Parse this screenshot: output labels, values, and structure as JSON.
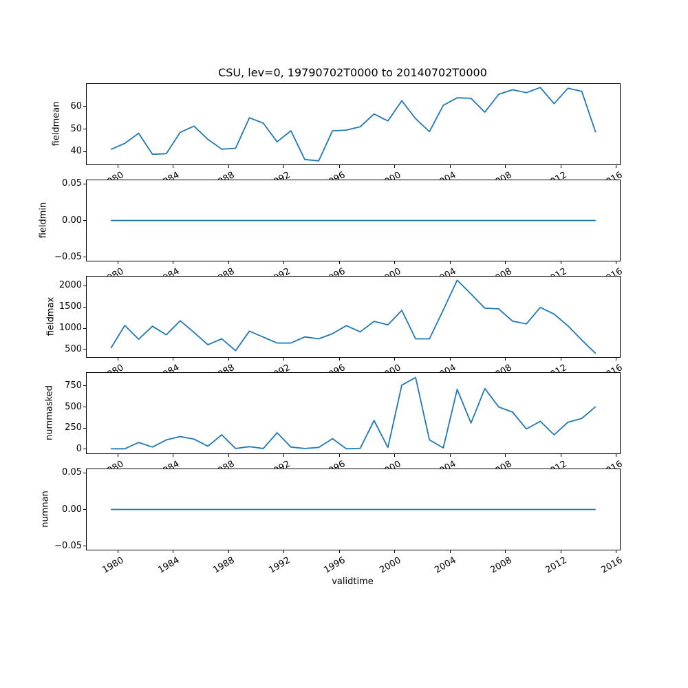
{
  "chart_data": {
    "type": "line",
    "title": "CSU, lev=0, 19790702T0000 to 20140702T0000",
    "xlabel": "validtime",
    "line_color": "#1f77b4",
    "legend": "none",
    "grid": false,
    "x_years": [
      1979,
      1980,
      1981,
      1982,
      1983,
      1984,
      1985,
      1986,
      1987,
      1988,
      1989,
      1990,
      1991,
      1992,
      1993,
      1994,
      1995,
      1996,
      1997,
      1998,
      1999,
      2000,
      2001,
      2002,
      2003,
      2004,
      2005,
      2006,
      2007,
      2008,
      2009,
      2010,
      2011,
      2012,
      2013,
      2014
    ],
    "x_year_fraction": 0.5,
    "xlim": [
      1977.75,
      2016.25
    ],
    "xtick_values": [
      1980,
      1984,
      1988,
      1992,
      1996,
      2000,
      2004,
      2008,
      2012,
      2016
    ],
    "xtick_labels": [
      "1980",
      "1984",
      "1988",
      "1992",
      "1996",
      "2000",
      "2004",
      "2008",
      "2012",
      "2016"
    ],
    "xtick_rotation_deg": 30,
    "subplots": [
      {
        "ylabel": "fieldmean",
        "ylim": [
          34.2,
          70.1
        ],
        "ytick_values": [
          40,
          50,
          60
        ],
        "ytick_labels": [
          "40",
          "50",
          "60"
        ],
        "values": [
          40.9,
          43.6,
          48.1,
          38.7,
          39.0,
          48.5,
          51.3,
          45.4,
          41.0,
          41.4,
          55.0,
          52.6,
          44.3,
          49.2,
          36.4,
          35.8,
          49.2,
          49.5,
          51.0,
          56.7,
          53.6,
          62.6,
          54.6,
          48.8,
          60.6,
          63.9,
          63.7,
          57.5,
          65.5,
          67.5,
          66.2,
          68.5,
          61.3,
          68.2,
          66.8,
          48.5
        ]
      },
      {
        "ylabel": "fieldmin",
        "ylim": [
          -0.055,
          0.055
        ],
        "ytick_values": [
          -0.05,
          0.0,
          0.05
        ],
        "ytick_labels": [
          "−0.05",
          "0.00",
          "0.05"
        ],
        "values": [
          0,
          0,
          0,
          0,
          0,
          0,
          0,
          0,
          0,
          0,
          0,
          0,
          0,
          0,
          0,
          0,
          0,
          0,
          0,
          0,
          0,
          0,
          0,
          0,
          0,
          0,
          0,
          0,
          0,
          0,
          0,
          0,
          0,
          0,
          0,
          0
        ]
      },
      {
        "ylabel": "fieldmax",
        "ylim": [
          320,
          2215
        ],
        "ytick_values": [
          500,
          1000,
          1500,
          2000
        ],
        "ytick_labels": [
          "500",
          "1000",
          "1500",
          "2000"
        ],
        "values": [
          530,
          1065,
          740,
          1045,
          845,
          1175,
          900,
          610,
          750,
          470,
          930,
          790,
          650,
          650,
          795,
          750,
          870,
          1060,
          915,
          1160,
          1080,
          1420,
          750,
          750,
          1430,
          2130,
          1805,
          1470,
          1455,
          1165,
          1100,
          1490,
          1330,
          1055,
          720,
          405
        ]
      },
      {
        "ylabel": "nummasked",
        "ylim": [
          -50,
          905
        ],
        "ytick_values": [
          0,
          250,
          500,
          750
        ],
        "ytick_labels": [
          "0",
          "250",
          "500",
          "750"
        ],
        "values": [
          5,
          5,
          80,
          25,
          110,
          150,
          120,
          35,
          170,
          8,
          30,
          8,
          195,
          25,
          8,
          20,
          125,
          5,
          10,
          340,
          20,
          760,
          850,
          110,
          15,
          710,
          310,
          720,
          500,
          440,
          240,
          330,
          170,
          320,
          365,
          505
        ]
      },
      {
        "ylabel": "numnan",
        "ylim": [
          -0.055,
          0.055
        ],
        "ytick_values": [
          -0.05,
          0.0,
          0.05
        ],
        "ytick_labels": [
          "−0.05",
          "0.00",
          "0.05"
        ],
        "values": [
          0,
          0,
          0,
          0,
          0,
          0,
          0,
          0,
          0,
          0,
          0,
          0,
          0,
          0,
          0,
          0,
          0,
          0,
          0,
          0,
          0,
          0,
          0,
          0,
          0,
          0,
          0,
          0,
          0,
          0,
          0,
          0,
          0,
          0,
          0,
          0
        ]
      }
    ]
  }
}
